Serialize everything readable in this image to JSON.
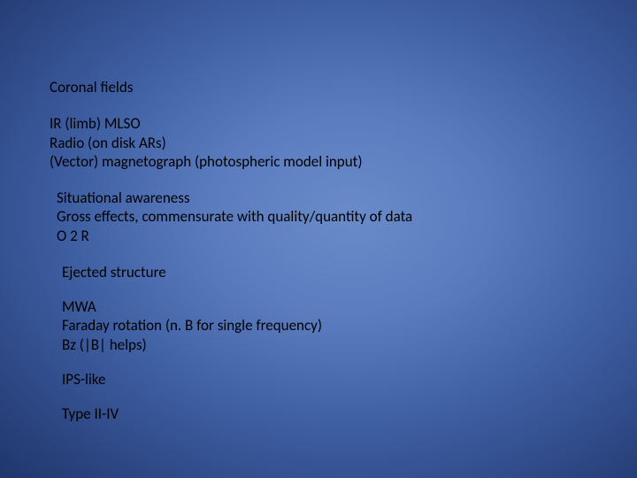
{
  "background": {
    "gradient_center": "#6a8bc8",
    "gradient_mid": "#3f5fa3",
    "gradient_edge": "#0a1538"
  },
  "text_color": "#000000",
  "font_family": "Calibri",
  "font_size_pt": 13,
  "blocks": {
    "b0": {
      "l0": "Coronal fields"
    },
    "b1": {
      "l0": "IR (limb) MLSO",
      "l1": "Radio (on disk ARs)",
      "l2": "(Vector) magnetograph (photospheric model input)"
    },
    "b2": {
      "l0": "Situational awareness",
      "l1": "Gross effects, commensurate with quality/quantity of data",
      "l2": "O 2 R"
    },
    "b3": {
      "l0": "Ejected structure"
    },
    "b4": {
      "l0": "MWA",
      "l1": "Faraday rotation (n. B  for single frequency)",
      "l2": "Bz (|B| helps)"
    },
    "b5": {
      "l0": "IPS-like"
    },
    "b6": {
      "l0": "Type II-IV"
    }
  }
}
